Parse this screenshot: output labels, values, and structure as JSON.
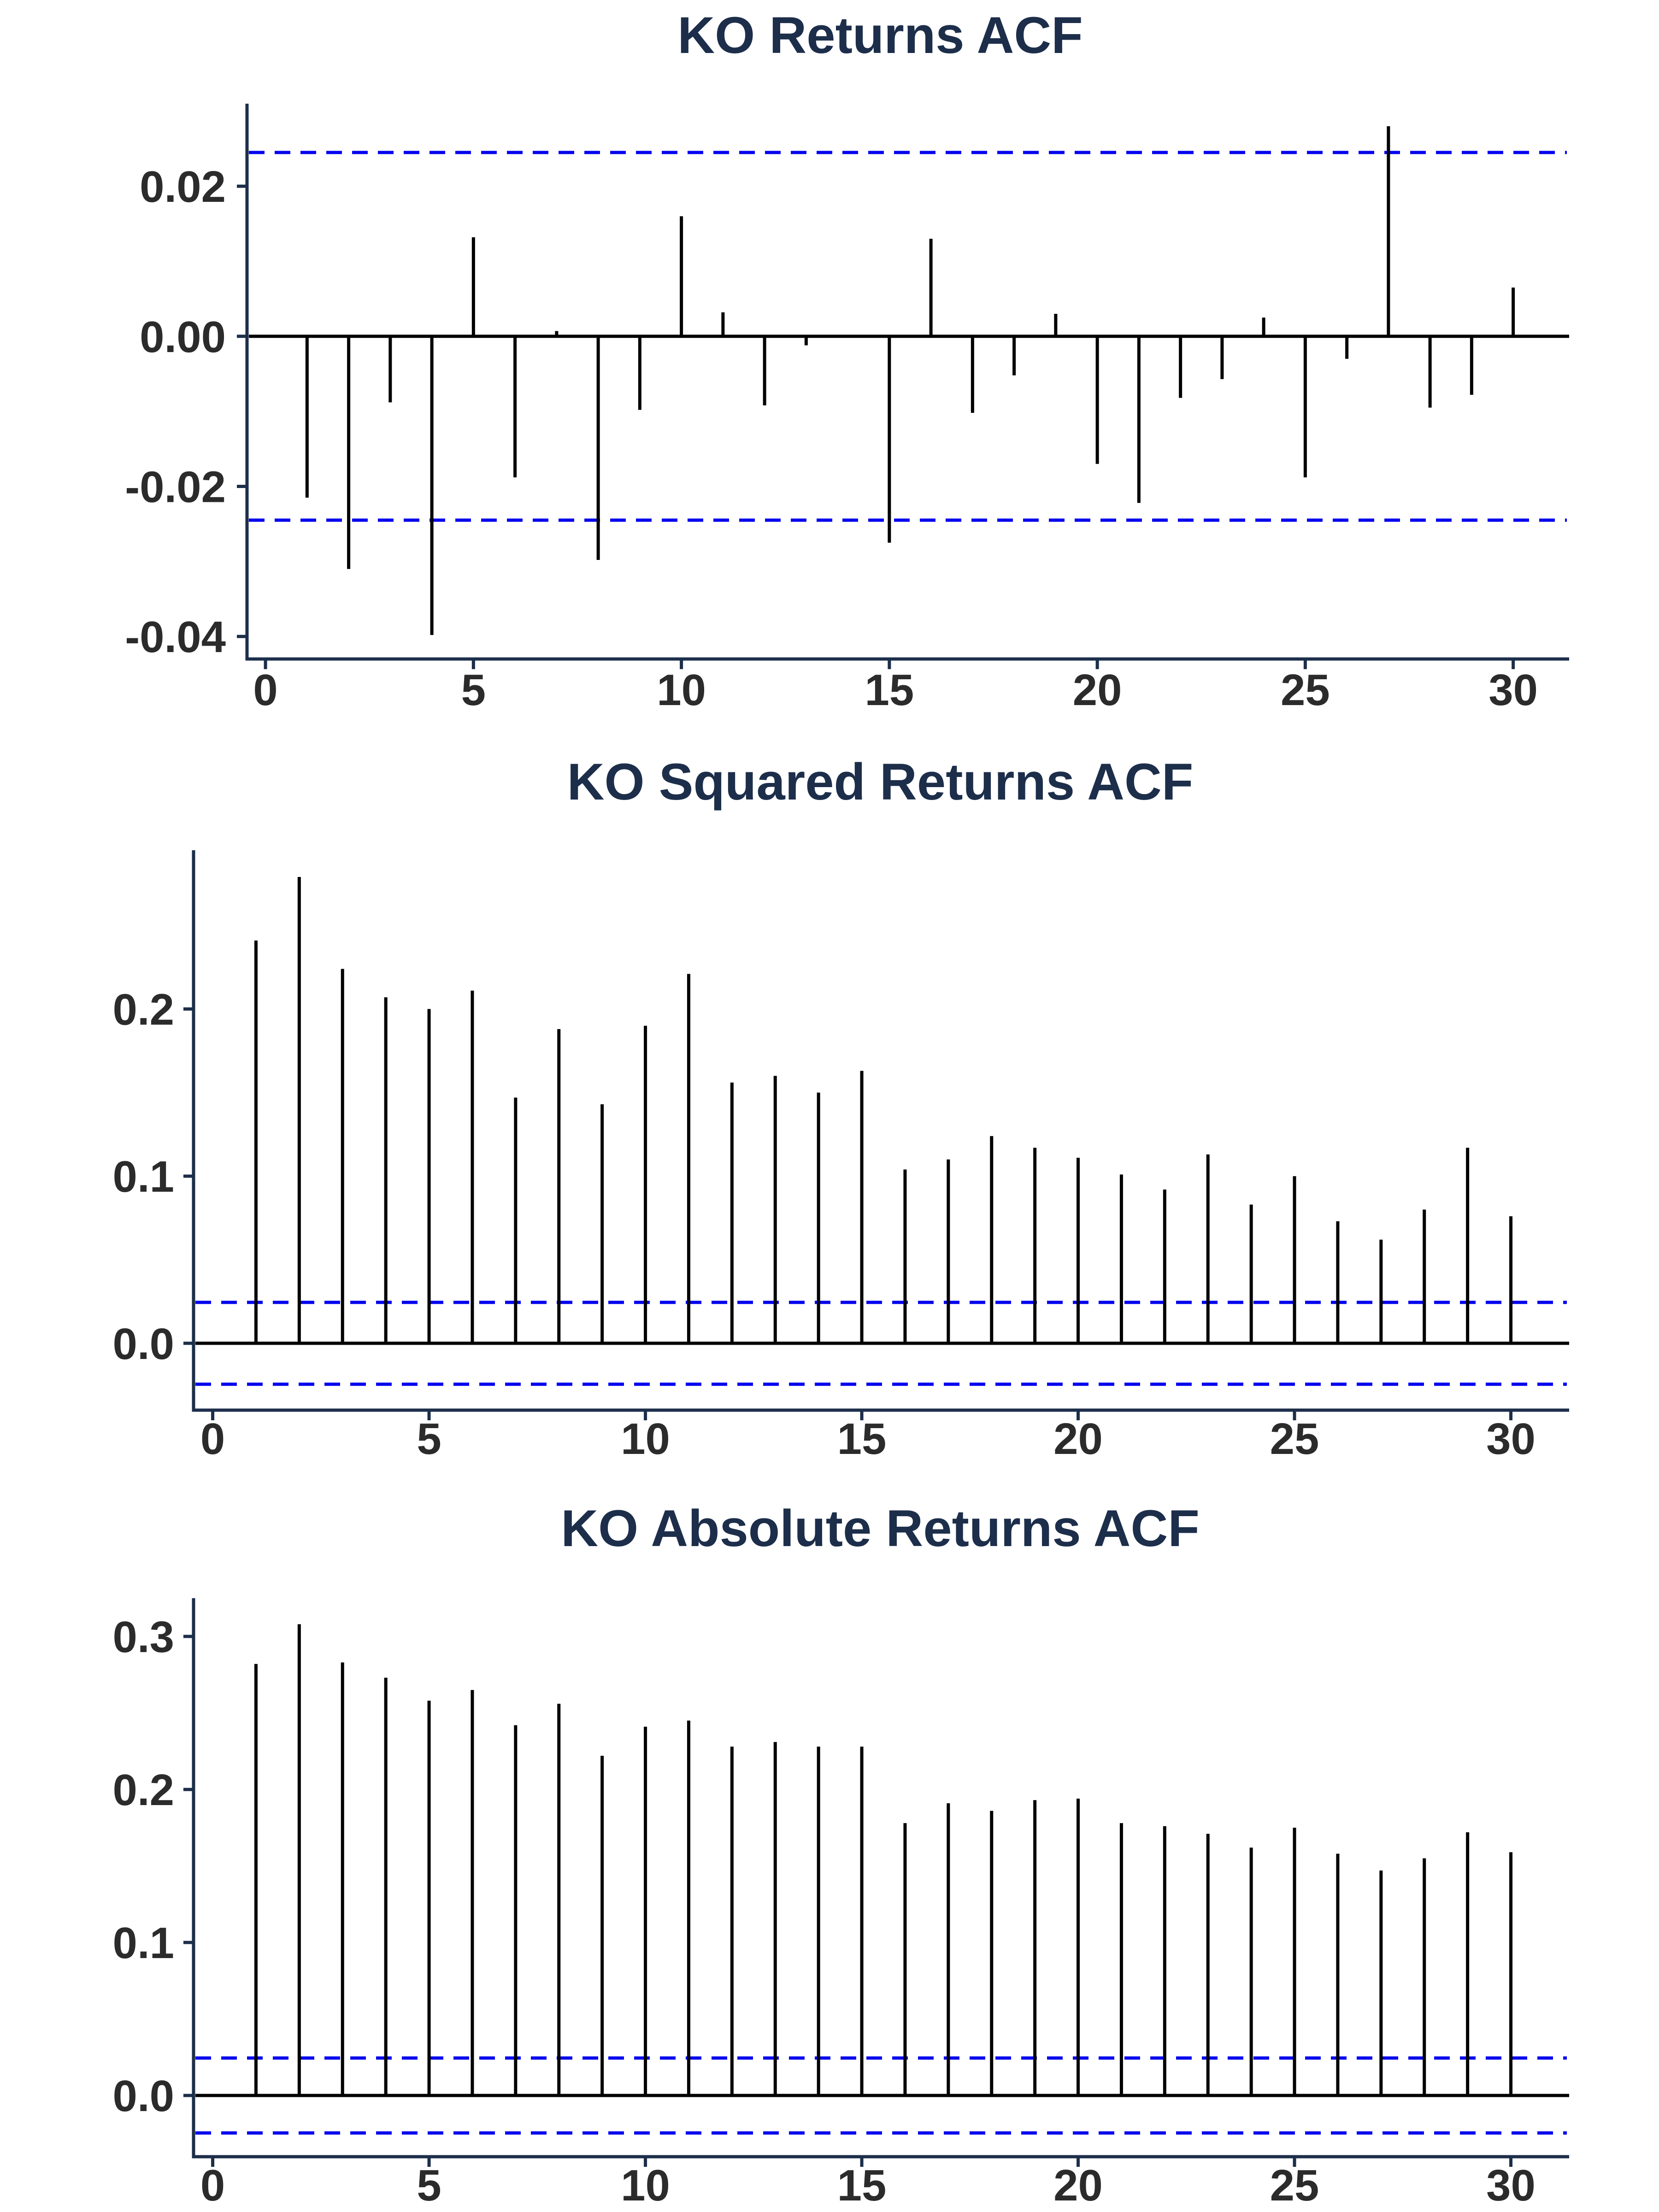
{
  "chart_data": [
    {
      "type": "bar",
      "subtype": "acf-stem",
      "title": "KO Returns ACF",
      "xlabel": "",
      "ylabel": "",
      "x": [
        1,
        2,
        3,
        4,
        5,
        6,
        7,
        8,
        9,
        10,
        11,
        12,
        13,
        14,
        15,
        16,
        17,
        18,
        19,
        20,
        21,
        22,
        23,
        24,
        25,
        26,
        27,
        28,
        29,
        30
      ],
      "values": [
        -0.0215,
        -0.031,
        -0.0088,
        -0.0398,
        0.0132,
        -0.0188,
        0.0007,
        -0.0298,
        -0.0098,
        0.016,
        0.0032,
        -0.0092,
        -0.0012,
        0.0,
        -0.0275,
        0.013,
        -0.0102,
        -0.0052,
        0.003,
        -0.017,
        -0.0222,
        -0.0082,
        -0.0057,
        0.0025,
        -0.0188,
        -0.003,
        0.028,
        -0.0095,
        -0.0078,
        0.0065
      ],
      "confidence_bound": 0.0245,
      "xlim": [
        -0.4,
        31.4
      ],
      "ylim": [
        -0.043,
        0.031
      ],
      "xticks": [
        0,
        5,
        10,
        15,
        20,
        25,
        30
      ],
      "xtick_labels": [
        "0",
        "5",
        "10",
        "15",
        "20",
        "25",
        "30"
      ],
      "yticks": [
        -0.04,
        -0.02,
        0.0,
        0.02
      ],
      "ytick_labels": [
        "-0.04",
        "-0.02",
        "0.00",
        "0.02"
      ],
      "grid": false,
      "colors": {
        "stem": "#000000",
        "bound": "#0000ee",
        "axis": "#1c2e4a",
        "title": "#1c2e4a",
        "tick": "#2b2b2b"
      }
    },
    {
      "type": "bar",
      "subtype": "acf-stem",
      "title": "KO Squared Returns ACF",
      "xlabel": "",
      "ylabel": "",
      "x": [
        1,
        2,
        3,
        4,
        5,
        6,
        7,
        8,
        9,
        10,
        11,
        12,
        13,
        14,
        15,
        16,
        17,
        18,
        19,
        20,
        21,
        22,
        23,
        24,
        25,
        26,
        27,
        28,
        29,
        30
      ],
      "values": [
        0.241,
        0.279,
        0.224,
        0.207,
        0.2,
        0.211,
        0.147,
        0.188,
        0.143,
        0.19,
        0.221,
        0.156,
        0.16,
        0.15,
        0.163,
        0.104,
        0.11,
        0.124,
        0.117,
        0.111,
        0.101,
        0.092,
        0.113,
        0.083,
        0.1,
        0.073,
        0.062,
        0.08,
        0.117,
        0.076
      ],
      "confidence_bound": 0.0245,
      "xlim": [
        -0.4,
        31.4
      ],
      "ylim": [
        -0.04,
        0.295
      ],
      "xticks": [
        0,
        5,
        10,
        15,
        20,
        25,
        30
      ],
      "xtick_labels": [
        "0",
        "5",
        "10",
        "15",
        "20",
        "25",
        "30"
      ],
      "yticks": [
        0.0,
        0.1,
        0.2
      ],
      "ytick_labels": [
        "0.0",
        "0.1",
        "0.2"
      ],
      "grid": false,
      "colors": {
        "stem": "#000000",
        "bound": "#0000ee",
        "axis": "#1c2e4a",
        "title": "#1c2e4a",
        "tick": "#2b2b2b"
      }
    },
    {
      "type": "bar",
      "subtype": "acf-stem",
      "title": "KO Absolute Returns ACF",
      "xlabel": "",
      "ylabel": "",
      "x": [
        1,
        2,
        3,
        4,
        5,
        6,
        7,
        8,
        9,
        10,
        11,
        12,
        13,
        14,
        15,
        16,
        17,
        18,
        19,
        20,
        21,
        22,
        23,
        24,
        25,
        26,
        27,
        28,
        29,
        30
      ],
      "values": [
        0.282,
        0.308,
        0.283,
        0.273,
        0.258,
        0.265,
        0.242,
        0.256,
        0.222,
        0.241,
        0.245,
        0.228,
        0.231,
        0.228,
        0.228,
        0.178,
        0.191,
        0.186,
        0.193,
        0.194,
        0.178,
        0.176,
        0.171,
        0.162,
        0.175,
        0.158,
        0.147,
        0.155,
        0.172,
        0.159
      ],
      "confidence_bound": 0.0245,
      "xlim": [
        -0.4,
        31.4
      ],
      "ylim": [
        -0.04,
        0.325
      ],
      "xticks": [
        0,
        5,
        10,
        15,
        20,
        25,
        30
      ],
      "xtick_labels": [
        "0",
        "5",
        "10",
        "15",
        "20",
        "25",
        "30"
      ],
      "yticks": [
        0.0,
        0.1,
        0.2,
        0.3
      ],
      "ytick_labels": [
        "0.0",
        "0.1",
        "0.2",
        "0.3"
      ],
      "grid": false,
      "colors": {
        "stem": "#000000",
        "bound": "#0000ee",
        "axis": "#1c2e4a",
        "title": "#1c2e4a",
        "tick": "#2b2b2b"
      }
    }
  ]
}
